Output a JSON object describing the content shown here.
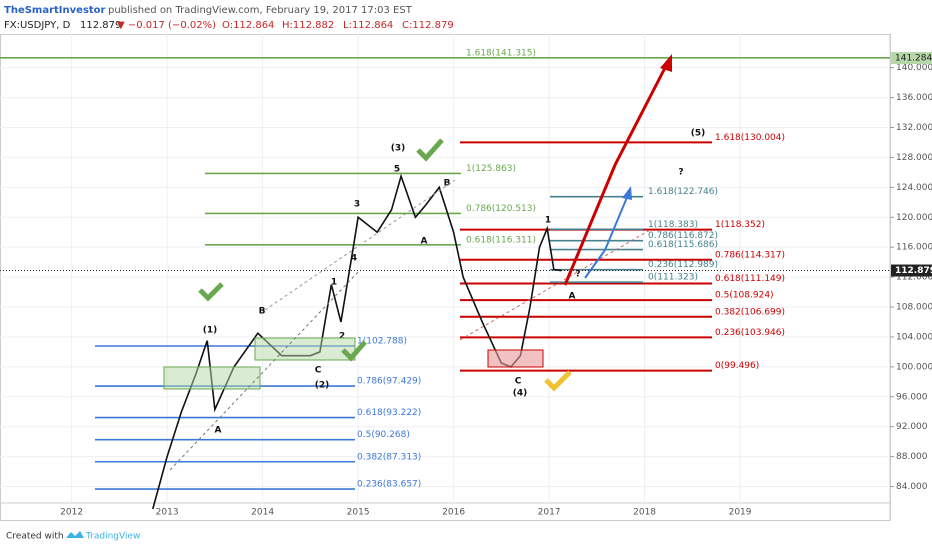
{
  "chart_data": {
    "type": "line",
    "author": "TheSmartInvestor",
    "published": "published on TradingView.com, February 19, 2017 17:03 EST",
    "symbol": "FX:USDJPY, D",
    "change": "▼ −0.017 (−0.02%)",
    "open": "O:112.864",
    "high": "H:112.882",
    "low": "L:112.864",
    "close": "C:112.879",
    "footer": "Created with",
    "brand": "TradingView",
    "color": "#111111",
    "x": [
      2012.85,
      2013.0,
      2013.15,
      2013.3,
      2013.42,
      2013.5,
      2013.7,
      2013.95,
      2014.2,
      2014.5,
      2014.6,
      2014.68,
      2014.72,
      2014.82,
      2014.95,
      2015.0,
      2015.2,
      2015.35,
      2015.45,
      2015.6,
      2015.7,
      2015.85,
      2016.0,
      2016.1,
      2016.3,
      2016.5,
      2016.6,
      2016.7,
      2016.8,
      2016.9,
      2016.98,
      2017.05,
      2017.13
    ],
    "values": [
      81,
      88,
      94,
      99,
      103.5,
      94.3,
      100,
      104.5,
      101.5,
      101.5,
      102,
      108,
      111,
      106,
      116,
      120,
      118,
      121,
      125.5,
      120,
      121.5,
      124,
      118,
      112,
      106,
      100.5,
      100,
      101.5,
      108,
      116,
      118.5,
      113,
      112.879
    ],
    "xlim": [
      2011.25,
      2020.57
    ],
    "xticks": [
      2012,
      2013,
      2014,
      2015,
      2016,
      2017,
      2018,
      2019
    ],
    "ylim": [
      81.8,
      144.5
    ],
    "yticks": [
      {
        "value": 84,
        "label": "84.000"
      },
      {
        "value": 88,
        "label": "88.000"
      },
      {
        "value": 92,
        "label": "92.000"
      },
      {
        "value": 96,
        "label": "96.000"
      },
      {
        "value": 100,
        "label": "100.000"
      },
      {
        "value": 104,
        "label": "104.000"
      },
      {
        "value": 108,
        "label": "108.000"
      },
      {
        "value": 112,
        "label": "112.000"
      },
      {
        "value": 116,
        "label": "116.000"
      },
      {
        "value": 120,
        "label": "120.000"
      },
      {
        "value": 124,
        "label": "124.000"
      },
      {
        "value": 128,
        "label": "128.000"
      },
      {
        "value": 132,
        "label": "132.000"
      },
      {
        "value": 136,
        "label": "136.000"
      },
      {
        "value": 140,
        "label": "140.000"
      }
    ],
    "grid": true,
    "last_price": 112.879,
    "marker_price": 141.284,
    "fib_groups": [
      {
        "color": "#6aa84f",
        "values": [
          141.315,
          125.863,
          120.513,
          116.311
        ],
        "value_labels": [
          "1.618(141.315)",
          "1(125.863)",
          "0.786(120.513)",
          "0.618(116.311)"
        ]
      },
      {
        "color": "#cc0000",
        "values": [
          130.004,
          118.352,
          114.317,
          111.149,
          108.924,
          106.699,
          103.946,
          99.496
        ],
        "value_labels": [
          "1.618(130.004)",
          "1(118.352)",
          "0.786(114.317)",
          "0.618(111.149)",
          "0.5(108.924)",
          "0.382(106.699)",
          "0.236(103.946)",
          "0(99.496)"
        ]
      },
      {
        "color": "#3c78d8",
        "values": [
          102.788,
          97.429,
          93.222,
          90.268,
          87.313,
          83.657
        ],
        "value_labels": [
          "1(102.788)",
          "0.786(97.429)",
          "0.618(93.222)",
          "0.5(90.268)",
          "0.382(87.313)",
          "0.236(83.657)"
        ]
      },
      {
        "color": "#45818e",
        "values": [
          122.746,
          118.383,
          116.872,
          115.686,
          112.989,
          111.323
        ],
        "value_labels": [
          "1.618(122.746)",
          "1(118.383)",
          "0.786(116.872)",
          "0.618(115.686)",
          "0.236(112.989)",
          "0(111.323)"
        ]
      }
    ],
    "annotations": [
      "(1)",
      "(2)",
      "(3)",
      "(4)",
      "(5)",
      "A",
      "B",
      "C",
      "1",
      "2",
      "3",
      "4",
      "5",
      "A",
      "B",
      "C",
      "1",
      "A",
      "?",
      "?"
    ]
  }
}
